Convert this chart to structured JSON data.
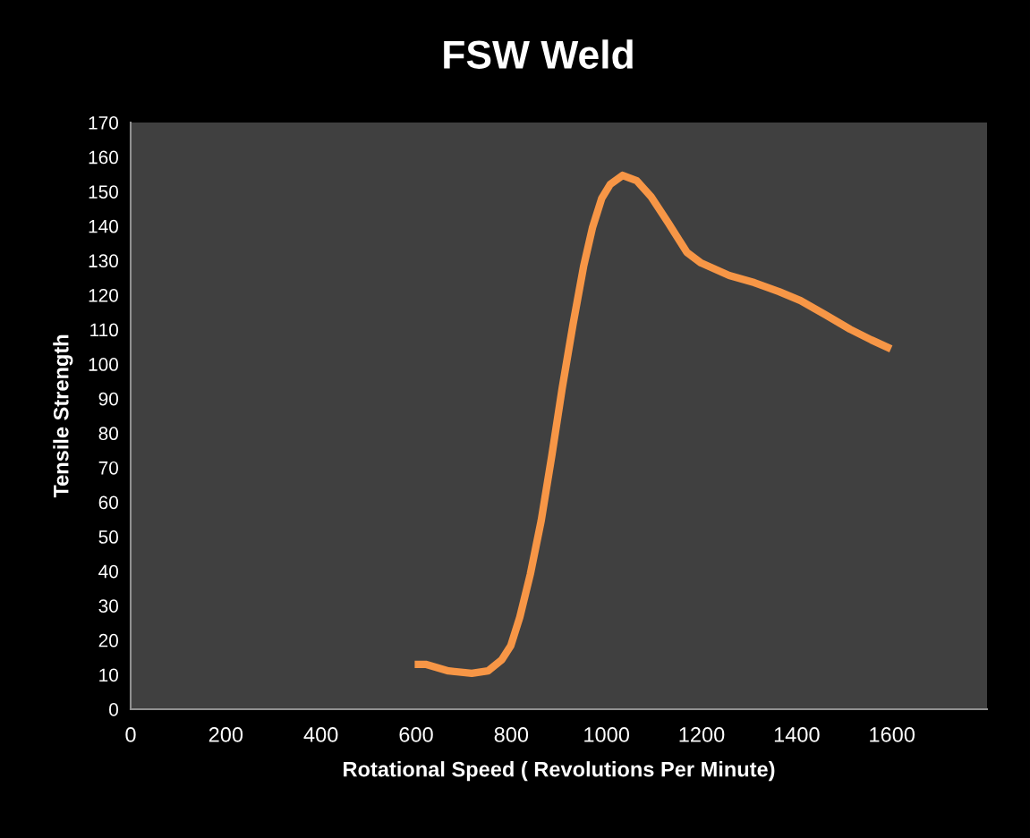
{
  "chart_data": {
    "type": "line",
    "title": "FSW Weld",
    "xlabel": "Rotational Speed ( Revolutions Per Minute)",
    "ylabel": "Tensile Strength",
    "x": [
      597,
      620,
      668,
      717,
      751,
      780,
      799,
      818,
      840,
      863,
      885,
      907,
      930,
      952,
      971,
      990,
      1008,
      1034,
      1064,
      1094,
      1131,
      1169,
      1199,
      1258,
      1311,
      1363,
      1408,
      1460,
      1512,
      1557,
      1598
    ],
    "series": [
      {
        "color": "#f79646",
        "values": [
          13.0,
          13.0,
          11.1,
          10.4,
          11.1,
          14.3,
          18.4,
          26.7,
          39.1,
          54.7,
          73.3,
          93.0,
          111.7,
          128.3,
          139.7,
          148.0,
          152.1,
          154.7,
          153.1,
          148.5,
          140.7,
          132.4,
          129.3,
          125.7,
          123.6,
          121.0,
          118.4,
          114.3,
          110.1,
          107.0,
          104.4
        ]
      }
    ],
    "xlim": [
      0,
      1800
    ],
    "xticks": [
      0,
      200,
      400,
      600,
      800,
      1000,
      1200,
      1400,
      1600
    ],
    "ylim": [
      0,
      170
    ],
    "yticks": [
      0,
      10,
      20,
      30,
      40,
      50,
      60,
      70,
      80,
      90,
      100,
      110,
      120,
      130,
      140,
      150,
      160,
      170
    ],
    "grid": false,
    "legend": false,
    "marker": "none",
    "line_style": "solid"
  }
}
